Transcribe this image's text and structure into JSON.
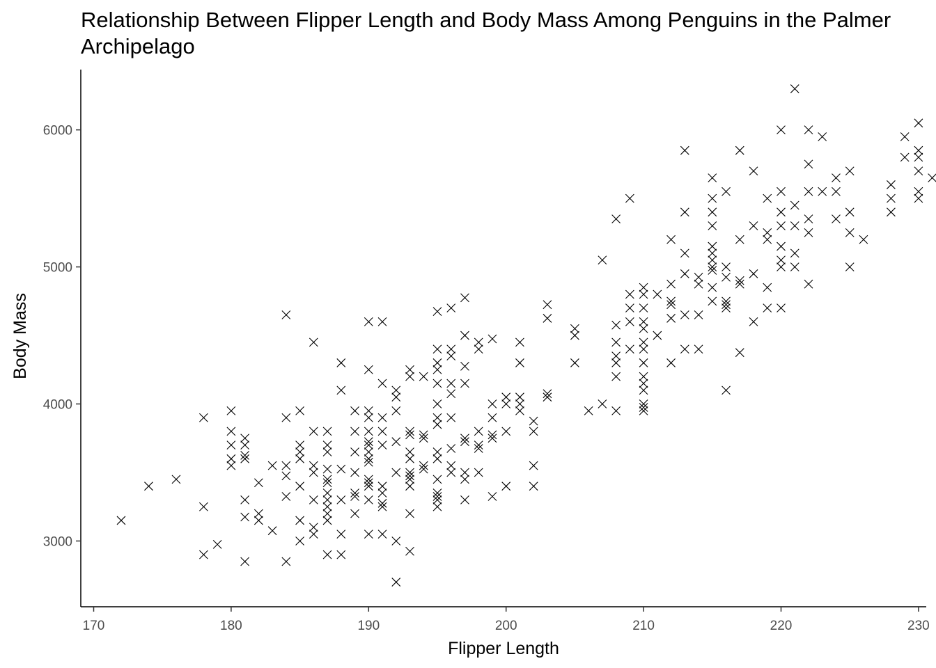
{
  "chart_data": {
    "type": "scatter",
    "title": "Relationship Between Flipper Length and Body Mass Among Penguins in the Palmer Archipelago",
    "xlabel": "Flipper Length",
    "ylabel": "Body Mass",
    "xlim": [
      170,
      231.5
    ],
    "ylim": [
      2520,
      6440
    ],
    "xticks": [
      170,
      180,
      190,
      200,
      210,
      220,
      230
    ],
    "yticks": [
      3000,
      4000,
      5000,
      6000
    ],
    "grid": false,
    "marker": "x",
    "marker_color": "#000000",
    "points": [
      [
        172,
        3150
      ],
      [
        174,
        3400
      ],
      [
        176,
        3450
      ],
      [
        178,
        3900
      ],
      [
        178,
        3250
      ],
      [
        178,
        2900
      ],
      [
        179,
        2975
      ],
      [
        180,
        3950
      ],
      [
        180,
        3800
      ],
      [
        180,
        3700
      ],
      [
        180,
        3600
      ],
      [
        180,
        3550
      ],
      [
        181,
        3750
      ],
      [
        181,
        3700
      ],
      [
        181,
        3625
      ],
      [
        181,
        3600
      ],
      [
        181,
        3300
      ],
      [
        181,
        3175
      ],
      [
        181,
        2850
      ],
      [
        182,
        3425
      ],
      [
        182,
        3200
      ],
      [
        182,
        3150
      ],
      [
        183,
        3550
      ],
      [
        183,
        3075
      ],
      [
        184,
        4650
      ],
      [
        184,
        3900
      ],
      [
        184,
        3550
      ],
      [
        184,
        3475
      ],
      [
        184,
        3325
      ],
      [
        184,
        2850
      ],
      [
        185,
        3950
      ],
      [
        185,
        3700
      ],
      [
        185,
        3650
      ],
      [
        185,
        3600
      ],
      [
        185,
        3400
      ],
      [
        185,
        3150
      ],
      [
        185,
        3000
      ],
      [
        186,
        4450
      ],
      [
        186,
        3800
      ],
      [
        186,
        3550
      ],
      [
        186,
        3500
      ],
      [
        186,
        3300
      ],
      [
        186,
        3100
      ],
      [
        186,
        3050
      ],
      [
        187,
        3800
      ],
      [
        187,
        3700
      ],
      [
        187,
        3650
      ],
      [
        187,
        3525
      ],
      [
        187,
        3450
      ],
      [
        187,
        3425
      ],
      [
        187,
        3350
      ],
      [
        187,
        3300
      ],
      [
        187,
        3250
      ],
      [
        187,
        3200
      ],
      [
        187,
        3150
      ],
      [
        187,
        2900
      ],
      [
        188,
        4300
      ],
      [
        188,
        4100
      ],
      [
        188,
        3525
      ],
      [
        188,
        3300
      ],
      [
        188,
        3050
      ],
      [
        188,
        2900
      ],
      [
        189,
        3950
      ],
      [
        189,
        3800
      ],
      [
        189,
        3650
      ],
      [
        189,
        3500
      ],
      [
        189,
        3350
      ],
      [
        189,
        3325
      ],
      [
        189,
        3200
      ],
      [
        190,
        4600
      ],
      [
        190,
        4250
      ],
      [
        190,
        3950
      ],
      [
        190,
        3900
      ],
      [
        190,
        3800
      ],
      [
        190,
        3725
      ],
      [
        190,
        3700
      ],
      [
        190,
        3650
      ],
      [
        190,
        3600
      ],
      [
        190,
        3575
      ],
      [
        190,
        3450
      ],
      [
        190,
        3425
      ],
      [
        190,
        3400
      ],
      [
        190,
        3300
      ],
      [
        190,
        3050
      ],
      [
        191,
        4600
      ],
      [
        191,
        4150
      ],
      [
        191,
        3900
      ],
      [
        191,
        3800
      ],
      [
        191,
        3700
      ],
      [
        191,
        3400
      ],
      [
        191,
        3350
      ],
      [
        191,
        3275
      ],
      [
        191,
        3250
      ],
      [
        191,
        3050
      ],
      [
        192,
        4100
      ],
      [
        192,
        4050
      ],
      [
        192,
        3950
      ],
      [
        192,
        3725
      ],
      [
        192,
        3500
      ],
      [
        192,
        3000
      ],
      [
        192,
        2700
      ],
      [
        193,
        4250
      ],
      [
        193,
        4200
      ],
      [
        193,
        3800
      ],
      [
        193,
        3775
      ],
      [
        193,
        3650
      ],
      [
        193,
        3600
      ],
      [
        193,
        3500
      ],
      [
        193,
        3475
      ],
      [
        193,
        3450
      ],
      [
        193,
        3400
      ],
      [
        193,
        3200
      ],
      [
        193,
        2925
      ],
      [
        194,
        4200
      ],
      [
        194,
        3775
      ],
      [
        194,
        3750
      ],
      [
        194,
        3550
      ],
      [
        194,
        3525
      ],
      [
        195,
        4675
      ],
      [
        195,
        4400
      ],
      [
        195,
        4300
      ],
      [
        195,
        4250
      ],
      [
        195,
        4150
      ],
      [
        195,
        4000
      ],
      [
        195,
        3900
      ],
      [
        195,
        3850
      ],
      [
        195,
        3650
      ],
      [
        195,
        3600
      ],
      [
        195,
        3450
      ],
      [
        195,
        3350
      ],
      [
        195,
        3325
      ],
      [
        195,
        3300
      ],
      [
        195,
        3250
      ],
      [
        196,
        4700
      ],
      [
        196,
        4400
      ],
      [
        196,
        4350
      ],
      [
        196,
        4150
      ],
      [
        196,
        4075
      ],
      [
        196,
        3900
      ],
      [
        196,
        3675
      ],
      [
        196,
        3550
      ],
      [
        196,
        3500
      ],
      [
        197,
        4775
      ],
      [
        197,
        4500
      ],
      [
        197,
        4275
      ],
      [
        197,
        4150
      ],
      [
        197,
        3750
      ],
      [
        197,
        3725
      ],
      [
        197,
        3500
      ],
      [
        197,
        3450
      ],
      [
        197,
        3300
      ],
      [
        198,
        4450
      ],
      [
        198,
        4400
      ],
      [
        198,
        3800
      ],
      [
        198,
        3700
      ],
      [
        198,
        3675
      ],
      [
        198,
        3500
      ],
      [
        199,
        4475
      ],
      [
        199,
        4000
      ],
      [
        199,
        3900
      ],
      [
        199,
        3775
      ],
      [
        199,
        3750
      ],
      [
        199,
        3325
      ],
      [
        200,
        4050
      ],
      [
        200,
        4000
      ],
      [
        200,
        3800
      ],
      [
        200,
        3400
      ],
      [
        201,
        4450
      ],
      [
        201,
        4300
      ],
      [
        201,
        4050
      ],
      [
        201,
        4000
      ],
      [
        201,
        3950
      ],
      [
        202,
        3875
      ],
      [
        202,
        3800
      ],
      [
        202,
        3550
      ],
      [
        202,
        3400
      ],
      [
        203,
        4725
      ],
      [
        203,
        4625
      ],
      [
        203,
        4075
      ],
      [
        203,
        4050
      ],
      [
        205,
        4550
      ],
      [
        205,
        4500
      ],
      [
        205,
        4300
      ],
      [
        206,
        3950
      ],
      [
        207,
        5050
      ],
      [
        207,
        4000
      ],
      [
        208,
        5350
      ],
      [
        208,
        4575
      ],
      [
        208,
        4450
      ],
      [
        208,
        4350
      ],
      [
        208,
        4300
      ],
      [
        208,
        4200
      ],
      [
        208,
        3950
      ],
      [
        209,
        5500
      ],
      [
        209,
        4800
      ],
      [
        209,
        4700
      ],
      [
        209,
        4600
      ],
      [
        209,
        4400
      ],
      [
        210,
        4850
      ],
      [
        210,
        4800
      ],
      [
        210,
        4700
      ],
      [
        210,
        4600
      ],
      [
        210,
        4550
      ],
      [
        210,
        4450
      ],
      [
        210,
        4400
      ],
      [
        210,
        4300
      ],
      [
        210,
        4200
      ],
      [
        210,
        4150
      ],
      [
        210,
        4100
      ],
      [
        210,
        4000
      ],
      [
        210,
        3975
      ],
      [
        210,
        3950
      ],
      [
        211,
        4800
      ],
      [
        211,
        4500
      ],
      [
        212,
        5200
      ],
      [
        212,
        4875
      ],
      [
        212,
        4750
      ],
      [
        212,
        4725
      ],
      [
        212,
        4625
      ],
      [
        212,
        4300
      ],
      [
        213,
        5850
      ],
      [
        213,
        5400
      ],
      [
        213,
        5100
      ],
      [
        213,
        4950
      ],
      [
        213,
        4650
      ],
      [
        213,
        4400
      ],
      [
        214,
        4925
      ],
      [
        214,
        4875
      ],
      [
        214,
        4650
      ],
      [
        214,
        4400
      ],
      [
        215,
        5650
      ],
      [
        215,
        5500
      ],
      [
        215,
        5400
      ],
      [
        215,
        5300
      ],
      [
        215,
        5150
      ],
      [
        215,
        5100
      ],
      [
        215,
        5050
      ],
      [
        215,
        5000
      ],
      [
        215,
        4975
      ],
      [
        215,
        4850
      ],
      [
        215,
        4750
      ],
      [
        216,
        5550
      ],
      [
        216,
        5000
      ],
      [
        216,
        4925
      ],
      [
        216,
        4750
      ],
      [
        216,
        4725
      ],
      [
        216,
        4700
      ],
      [
        216,
        4100
      ],
      [
        217,
        5850
      ],
      [
        217,
        5200
      ],
      [
        217,
        4900
      ],
      [
        217,
        4875
      ],
      [
        217,
        4375
      ],
      [
        218,
        5700
      ],
      [
        218,
        5300
      ],
      [
        218,
        4950
      ],
      [
        218,
        4600
      ],
      [
        219,
        5500
      ],
      [
        219,
        5250
      ],
      [
        219,
        5200
      ],
      [
        219,
        4850
      ],
      [
        219,
        4700
      ],
      [
        220,
        6000
      ],
      [
        220,
        5550
      ],
      [
        220,
        5400
      ],
      [
        220,
        5300
      ],
      [
        220,
        5150
      ],
      [
        220,
        5050
      ],
      [
        220,
        5000
      ],
      [
        220,
        4700
      ],
      [
        221,
        6300
      ],
      [
        221,
        5450
      ],
      [
        221,
        5300
      ],
      [
        221,
        5100
      ],
      [
        221,
        5000
      ],
      [
        222,
        6000
      ],
      [
        222,
        5750
      ],
      [
        222,
        5550
      ],
      [
        222,
        5350
      ],
      [
        222,
        5250
      ],
      [
        222,
        4875
      ],
      [
        223,
        5950
      ],
      [
        223,
        5550
      ],
      [
        224,
        5650
      ],
      [
        224,
        5550
      ],
      [
        224,
        5350
      ],
      [
        225,
        5700
      ],
      [
        225,
        5400
      ],
      [
        225,
        5250
      ],
      [
        225,
        5000
      ],
      [
        226,
        5200
      ],
      [
        228,
        5600
      ],
      [
        228,
        5500
      ],
      [
        228,
        5400
      ],
      [
        229,
        5950
      ],
      [
        229,
        5800
      ],
      [
        230,
        6050
      ],
      [
        230,
        5850
      ],
      [
        230,
        5800
      ],
      [
        230,
        5700
      ],
      [
        230,
        5550
      ],
      [
        230,
        5500
      ],
      [
        231,
        5650
      ]
    ]
  }
}
